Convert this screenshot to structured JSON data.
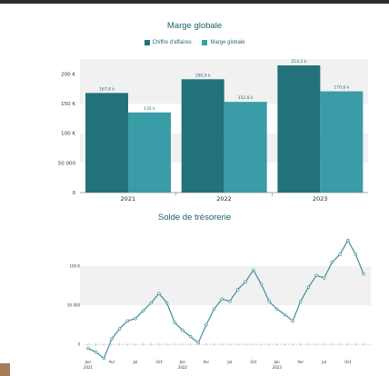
{
  "chart_data": [
    {
      "type": "bar",
      "title": "Marge globale",
      "categories": [
        "2021",
        "2022",
        "2023"
      ],
      "series": [
        {
          "name": "Chiffre d'affaires",
          "values": [
            167.8,
            190.9,
            214.3
          ],
          "labels": [
            "167,8 k",
            "190,9 k",
            "214,3 k"
          ],
          "color": "#23727a"
        },
        {
          "name": "Marge globale",
          "values": [
            135,
            152.8,
            170.6
          ],
          "labels": [
            "135 k",
            "152,8 k",
            "170,6 k"
          ],
          "color": "#3a9ca6"
        }
      ],
      "ylim": [
        0,
        225
      ],
      "yticks": [
        {
          "value": 0,
          "label": "0"
        },
        {
          "value": 50,
          "label": "50 000"
        },
        {
          "value": 100,
          "label": "100 K"
        },
        {
          "value": 150,
          "label": "150 K"
        },
        {
          "value": 200,
          "label": "200 K"
        }
      ],
      "grid": "alternating horizontal bands",
      "legend": "top-center"
    },
    {
      "type": "line",
      "title": "Solde de trésorerie",
      "x": [
        "2021-01",
        "2021-02",
        "2021-03",
        "2021-04",
        "2021-05",
        "2021-06",
        "2021-07",
        "2021-08",
        "2021-09",
        "2021-10",
        "2021-11",
        "2021-12",
        "2022-01",
        "2022-02",
        "2022-03",
        "2022-04",
        "2022-05",
        "2022-06",
        "2022-07",
        "2022-08",
        "2022-09",
        "2022-10",
        "2022-11",
        "2022-12",
        "2023-01",
        "2023-02",
        "2023-03",
        "2023-04",
        "2023-05",
        "2023-06",
        "2023-07",
        "2023-08",
        "2023-09",
        "2023-10",
        "2023-11",
        "2023-12"
      ],
      "values": [
        -5,
        -10,
        -18,
        7,
        20,
        30,
        33,
        43,
        53,
        65,
        53,
        28,
        18,
        10,
        2,
        25,
        45,
        58,
        55,
        70,
        80,
        95,
        77,
        55,
        45,
        38,
        30,
        55,
        73,
        88,
        85,
        105,
        115,
        133,
        115,
        90
      ],
      "ylim": [
        -30,
        150
      ],
      "yticks": [
        {
          "value": 0,
          "label": "0"
        },
        {
          "value": 50,
          "label": "50 000"
        },
        {
          "value": 100,
          "label": "100 K"
        }
      ],
      "xticks": [
        {
          "index": 0,
          "label": "Jan",
          "sub": "2021"
        },
        {
          "index": 3,
          "label": "Avr",
          "sub": ""
        },
        {
          "index": 6,
          "label": "Jul",
          "sub": ""
        },
        {
          "index": 9,
          "label": "Oct",
          "sub": ""
        },
        {
          "index": 12,
          "label": "Jan",
          "sub": "2022"
        },
        {
          "index": 15,
          "label": "Avr",
          "sub": ""
        },
        {
          "index": 18,
          "label": "Jul",
          "sub": ""
        },
        {
          "index": 21,
          "label": "Oct",
          "sub": ""
        },
        {
          "index": 24,
          "label": "Jan",
          "sub": "2023"
        },
        {
          "index": 27,
          "label": "Avr",
          "sub": ""
        },
        {
          "index": 30,
          "label": "Jul",
          "sub": ""
        },
        {
          "index": 33,
          "label": "Oct",
          "sub": ""
        }
      ],
      "color": "#3d8f9a",
      "grid": "horizontal band between 50 000 and 100 K",
      "legend": "none"
    }
  ]
}
